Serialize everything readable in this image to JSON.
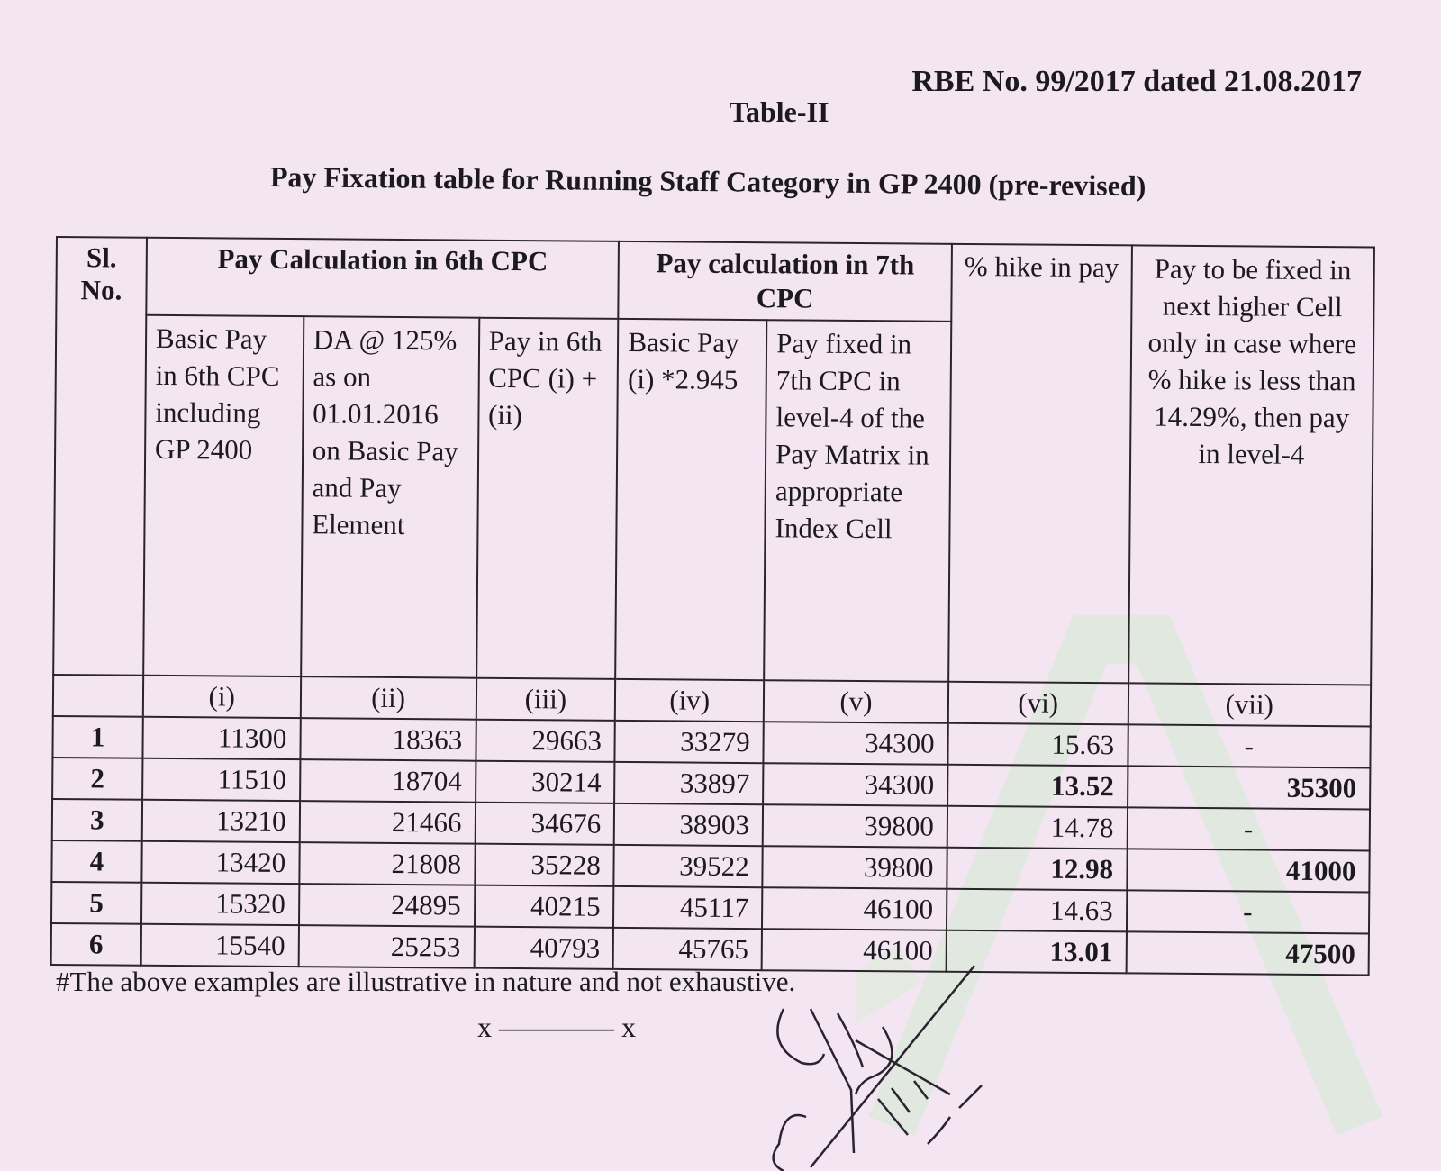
{
  "header": {
    "reference": "RBE No. 99/2017 dated 21.08.2017",
    "table_label": "Table-II",
    "title": "Pay Fixation table for Running Staff Category in GP 2400 (pre-revised)"
  },
  "table": {
    "sl_header": "Sl. No.",
    "group_6th": "Pay Calculation in 6th CPC",
    "group_7th": "Pay calculation in 7th CPC",
    "hike_header": "% hike in pay",
    "next_header": "Pay to be fixed in next higher Cell only in case where % hike is less than 14.29%, then pay in level-4",
    "col_i": "Basic Pay in 6th CPC including GP 2400",
    "col_ii": "DA @ 125% as on 01.01.2016 on Basic Pay and Pay Element",
    "col_iii": "Pay in 6th CPC (i) + (ii)",
    "col_iv": "Basic Pay (i) *2.945",
    "col_v": "Pay fixed in 7th CPC in level-4 of the Pay Matrix in appropriate Index Cell",
    "roman": [
      "(i)",
      "(ii)",
      "(iii)",
      "(iv)",
      "(v)",
      "(vi)",
      "(vii)"
    ],
    "rows": [
      [
        "1",
        "11300",
        "18363",
        "29663",
        "33279",
        "34300",
        "15.63",
        "-"
      ],
      [
        "2",
        "11510",
        "18704",
        "30214",
        "33897",
        "34300",
        "13.52",
        "35300"
      ],
      [
        "3",
        "13210",
        "21466",
        "34676",
        "38903",
        "39800",
        "14.78",
        "-"
      ],
      [
        "4",
        "13420",
        "21808",
        "35228",
        "39522",
        "39800",
        "12.98",
        "41000"
      ],
      [
        "5",
        "15320",
        "24895",
        "40215",
        "45117",
        "46100",
        "14.63",
        "-"
      ],
      [
        "6",
        "15540",
        "25253",
        "40793",
        "45765",
        "46100",
        "13.01",
        "47500"
      ]
    ]
  },
  "footer": {
    "note": "#The above examples are illustrative in nature and not exhaustive.",
    "end_mark": "x ———— x",
    "signature_text": "18/9/17 DPC-VIII"
  }
}
